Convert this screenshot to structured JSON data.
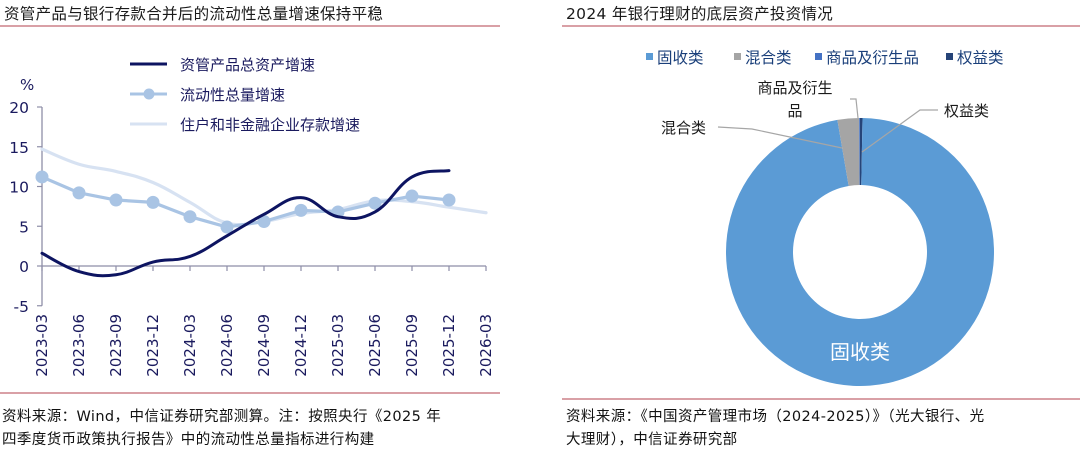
{
  "left": {
    "title": "资管产品与银行存款合并后的流动性总量增速保持平稳",
    "source_line1": "资料来源：Wind，中信证券研究部测算。注：按照央行《2025 年",
    "source_line2": "四季度货币政策执行报告》中的流动性总量指标进行构建"
  },
  "right": {
    "title": "2024 年银行理财的底层资产投资情况",
    "source_line1": "资料来源：《中国资产管理市场（2024-2025）》（光大银行、光",
    "source_line2": "大理财），中信证券研究部"
  },
  "chart_data": [
    {
      "type": "line",
      "title": "资管产品与银行存款合并后的流动性总量增速保持平稳",
      "ylabel": "%",
      "xlabel": "",
      "ylim": [
        -5,
        20
      ],
      "yticks": [
        -5,
        0,
        5,
        10,
        15,
        20
      ],
      "categories": [
        "2023-03",
        "2023-06",
        "2023-09",
        "2023-12",
        "2024-03",
        "2024-06",
        "2024-09",
        "2024-12",
        "2025-03",
        "2025-06",
        "2025-09",
        "2025-12",
        "2026-03"
      ],
      "legend_position": "top-right inside",
      "grid": false,
      "series": [
        {
          "name": "资管产品总资产增速",
          "color": "#0d1461",
          "style": "line",
          "values": [
            1.6,
            -0.7,
            -1.1,
            0.5,
            1.2,
            3.8,
            6.5,
            8.6,
            6.2,
            6.8,
            11.2,
            12.0,
            null
          ]
        },
        {
          "name": "流动性总量增速",
          "color": "#a9c4e4",
          "style": "line-marker",
          "values": [
            11.2,
            9.2,
            8.3,
            8.0,
            6.2,
            4.9,
            5.6,
            7.0,
            6.8,
            7.9,
            8.8,
            8.3,
            null
          ]
        },
        {
          "name": "住户和非金融企业存款增速",
          "color": "#d7e2f2",
          "style": "line",
          "values": [
            14.7,
            12.8,
            11.9,
            10.5,
            8.0,
            5.4,
            5.6,
            6.6,
            7.1,
            8.2,
            8.1,
            7.4,
            6.7
          ]
        }
      ]
    },
    {
      "type": "pie",
      "subtype": "donut",
      "title": "2024 年银行理财的底层资产投资情况",
      "legend_position": "top",
      "categories": [
        "固收类",
        "混合类",
        "商品及衍生品",
        "权益类"
      ],
      "values": [
        97.0,
        2.6,
        0.1,
        0.3
      ],
      "colors": [
        "#5b9bd5",
        "#a5a5a5",
        "#4472c4",
        "#264478"
      ],
      "data_labels": [
        "固收类",
        "混合类",
        "商品及衍生品",
        "权益类"
      ]
    }
  ]
}
